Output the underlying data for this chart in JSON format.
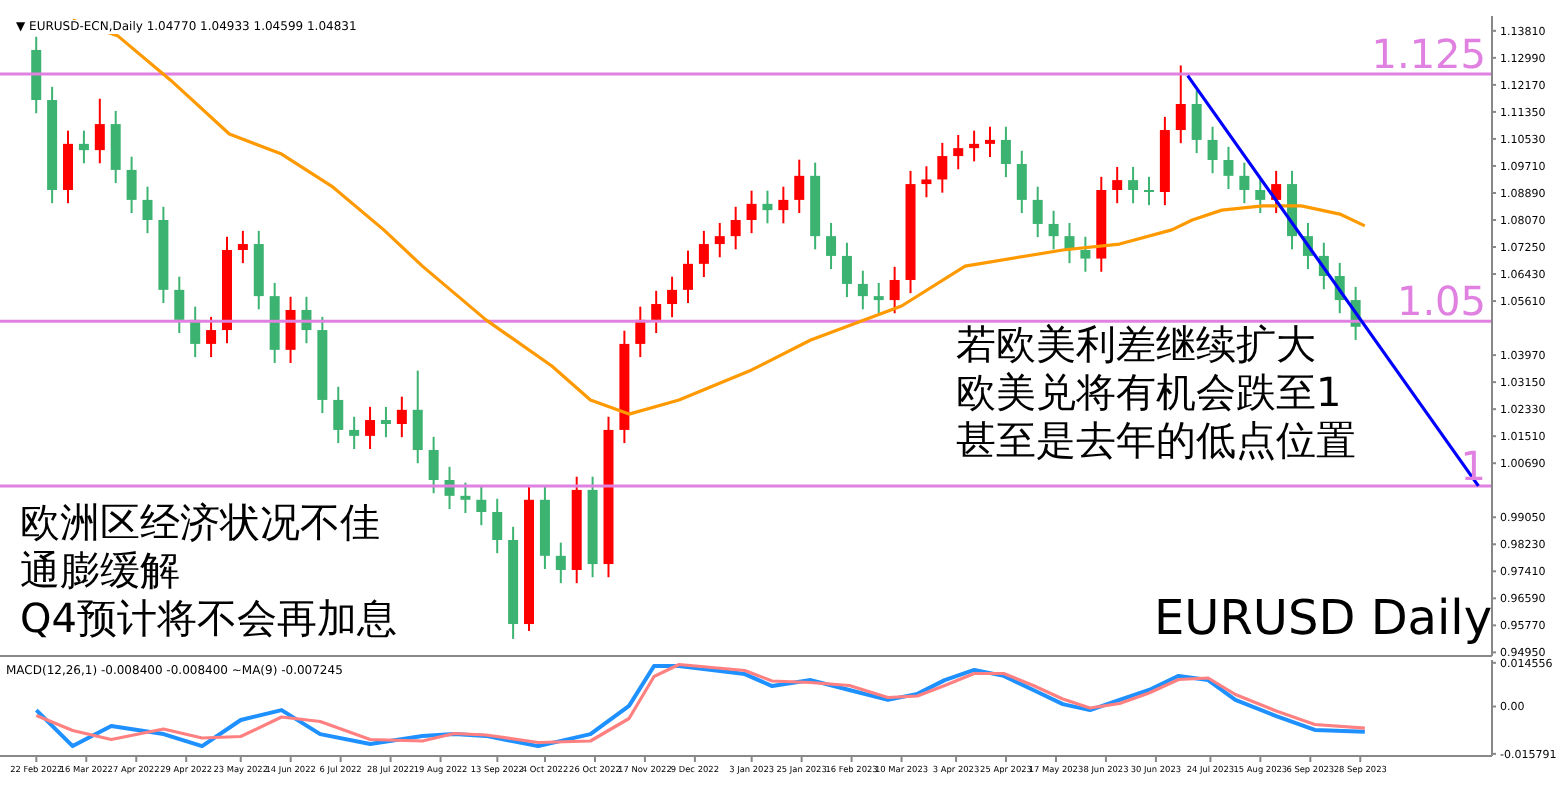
{
  "chart_data": [
    {
      "type": "candlestick",
      "title": "▼ EURUSD-ECN,Daily 1.04770 1.04933 1.04599 1.04831",
      "x": [
        "2022-02-22",
        "2022-03-01",
        "2022-03-08",
        "2022-03-15",
        "2022-03-22",
        "2022-03-29",
        "2022-04-05",
        "2022-04-12",
        "2022-04-19",
        "2022-04-26",
        "2022-05-03",
        "2022-05-10",
        "2022-05-17",
        "2022-05-24",
        "2022-05-31",
        "2022-06-07",
        "2022-06-14",
        "2022-06-21",
        "2022-06-28",
        "2022-07-05",
        "2022-07-12",
        "2022-07-19",
        "2022-07-26",
        "2022-08-02",
        "2022-08-09",
        "2022-08-16",
        "2022-08-23",
        "2022-08-30",
        "2022-09-06",
        "2022-09-13",
        "2022-09-20",
        "2022-09-27",
        "2022-10-04",
        "2022-10-11",
        "2022-10-18",
        "2022-10-25",
        "2022-11-01",
        "2022-11-08",
        "2022-11-15",
        "2022-11-22",
        "2022-11-29",
        "2022-12-06",
        "2022-12-13",
        "2022-12-20",
        "2022-12-27",
        "2023-01-03",
        "2023-01-10",
        "2023-01-17",
        "2023-01-24",
        "2023-01-31",
        "2023-02-07",
        "2023-02-14",
        "2023-02-21",
        "2023-02-28",
        "2023-03-07",
        "2023-03-14",
        "2023-03-21",
        "2023-03-28",
        "2023-04-04",
        "2023-04-11",
        "2023-04-18",
        "2023-04-25",
        "2023-05-02",
        "2023-05-09",
        "2023-05-16",
        "2023-05-23",
        "2023-05-30",
        "2023-06-06",
        "2023-06-13",
        "2023-06-20",
        "2023-06-27",
        "2023-07-04",
        "2023-07-11",
        "2023-07-18",
        "2023-07-25",
        "2023-08-01",
        "2023-08-08",
        "2023-08-15",
        "2023-08-22",
        "2023-08-29",
        "2023-09-05",
        "2023-09-12",
        "2023-09-19",
        "2023-09-26"
      ],
      "ohlc": [
        [
          1.1323,
          1.1363,
          1.1131,
          1.1171
        ],
        [
          1.1171,
          1.1211,
          1.0858,
          1.0898
        ],
        [
          1.0898,
          1.1078,
          1.0858,
          1.1038
        ],
        [
          1.1038,
          1.1078,
          1.0979,
          1.1019
        ],
        [
          1.1019,
          1.1175,
          1.0979,
          1.1098
        ],
        [
          1.1098,
          1.1138,
          1.0919,
          1.0959
        ],
        [
          1.0959,
          1.0999,
          1.0828,
          1.0868
        ],
        [
          1.0868,
          1.0908,
          1.0767,
          1.0807
        ],
        [
          1.0807,
          1.0847,
          1.0555,
          1.0595
        ],
        [
          1.0595,
          1.0635,
          1.0464,
          1.0504
        ],
        [
          1.0504,
          1.0544,
          1.0391,
          1.0431
        ],
        [
          1.0431,
          1.0513,
          1.0391,
          1.0473
        ],
        [
          1.0473,
          1.0756,
          1.0433,
          1.0716
        ],
        [
          1.0716,
          1.0774,
          1.0676,
          1.0734
        ],
        [
          1.0734,
          1.0774,
          1.0536,
          1.0576
        ],
        [
          1.0576,
          1.0616,
          1.0373,
          1.0413
        ],
        [
          1.0413,
          1.0574,
          1.0373,
          1.0534
        ],
        [
          1.0534,
          1.0574,
          1.0433,
          1.0473
        ],
        [
          1.0473,
          1.0513,
          1.0221,
          1.0261
        ],
        [
          1.0261,
          1.0301,
          1.013,
          1.017
        ],
        [
          1.017,
          1.021,
          1.0112,
          1.0152
        ],
        [
          1.0152,
          1.024,
          1.0112,
          1.02
        ],
        [
          1.02,
          1.024,
          1.0148,
          1.0188
        ],
        [
          1.0188,
          1.0271,
          1.0148,
          1.0231
        ],
        [
          1.0231,
          1.035,
          1.0069,
          1.0109
        ],
        [
          1.0109,
          1.0149,
          0.9978,
          1.0018
        ],
        [
          1.0018,
          1.0058,
          0.993,
          0.997
        ],
        [
          0.997,
          1.001,
          0.9918,
          0.9958
        ],
        [
          0.9958,
          0.9998,
          0.9881,
          0.9921
        ],
        [
          0.9921,
          0.9961,
          0.9796,
          0.9836
        ],
        [
          0.9836,
          0.9876,
          0.9536,
          0.9581
        ],
        [
          0.9581,
          1.0,
          0.956,
          0.9958
        ],
        [
          0.9958,
          0.9998,
          0.9748,
          0.9788
        ],
        [
          0.9788,
          0.9828,
          0.9705,
          0.9745
        ],
        [
          0.9745,
          1.0028,
          0.9705,
          0.9988
        ],
        [
          0.9988,
          1.0028,
          0.9723,
          0.9763
        ],
        [
          0.9763,
          1.021,
          0.9723,
          1.017
        ],
        [
          1.017,
          1.0471,
          1.013,
          1.0431
        ],
        [
          1.0431,
          1.0544,
          1.0391,
          1.0504
        ],
        [
          1.0504,
          1.0592,
          1.0464,
          1.0552
        ],
        [
          1.0552,
          1.0635,
          1.0512,
          1.0595
        ],
        [
          1.0595,
          1.0714,
          1.0555,
          1.0674
        ],
        [
          1.0674,
          1.0774,
          1.0634,
          1.0734
        ],
        [
          1.0734,
          1.0798,
          1.0694,
          1.0758
        ],
        [
          1.0758,
          1.0847,
          1.0718,
          1.0807
        ],
        [
          1.0807,
          1.0896,
          1.0767,
          1.0856
        ],
        [
          1.0856,
          1.0896,
          1.0797,
          1.0837
        ],
        [
          1.0837,
          1.0908,
          1.0797,
          1.0868
        ],
        [
          1.0868,
          1.099,
          1.0828,
          1.0941
        ],
        [
          1.0941,
          1.0981,
          1.0718,
          1.0758
        ],
        [
          1.0758,
          1.0798,
          1.0658,
          1.0698
        ],
        [
          1.0698,
          1.0738,
          1.0573,
          1.0613
        ],
        [
          1.0613,
          1.0653,
          1.0536,
          1.0576
        ],
        [
          1.0576,
          1.0616,
          1.0524,
          1.0564
        ],
        [
          1.0564,
          1.0665,
          1.0524,
          1.0625
        ],
        [
          1.0625,
          1.0956,
          1.0585,
          1.0916
        ],
        [
          1.0916,
          1.097,
          1.0876,
          1.093
        ],
        [
          1.093,
          1.1041,
          1.089,
          1.1001
        ],
        [
          1.1001,
          1.1065,
          1.0961,
          1.1025
        ],
        [
          1.1025,
          1.1078,
          1.0985,
          1.1038
        ],
        [
          1.1038,
          1.109,
          1.0998,
          1.105
        ],
        [
          1.105,
          1.109,
          1.0937,
          1.0977
        ],
        [
          1.0977,
          1.1017,
          1.0828,
          1.0868
        ],
        [
          1.0868,
          1.0908,
          1.0755,
          1.0795
        ],
        [
          1.0795,
          1.0835,
          1.0718,
          1.0758
        ],
        [
          1.0758,
          1.0798,
          1.0676,
          1.0716
        ],
        [
          1.0716,
          1.0756,
          1.065,
          1.069
        ],
        [
          1.069,
          1.0938,
          1.065,
          1.0898
        ],
        [
          1.0898,
          1.0968,
          1.0858,
          1.0928
        ],
        [
          1.0928,
          1.0968,
          1.0858,
          1.0898
        ],
        [
          1.0898,
          1.0938,
          1.0852,
          1.0892
        ],
        [
          1.0892,
          1.112,
          1.0852,
          1.108
        ],
        [
          1.108,
          1.1276,
          1.104,
          1.1159
        ],
        [
          1.1159,
          1.1199,
          1.101,
          1.105
        ],
        [
          1.105,
          1.109,
          1.0949,
          1.0989
        ],
        [
          1.0989,
          1.1029,
          1.0901,
          1.0941
        ],
        [
          1.0941,
          1.0981,
          1.0858,
          1.0898
        ],
        [
          1.0898,
          1.0938,
          1.0828,
          1.0868
        ],
        [
          1.0868,
          1.0956,
          1.0828,
          1.0916
        ],
        [
          1.0916,
          1.0956,
          1.0718,
          1.0758
        ],
        [
          1.0758,
          1.0798,
          1.0658,
          1.0698
        ],
        [
          1.0698,
          1.0738,
          1.0597,
          1.0637
        ],
        [
          1.0637,
          1.0677,
          1.0524,
          1.0564
        ],
        [
          1.0564,
          1.0604,
          1.0443,
          1.0483
        ]
      ],
      "colors": [
        "#3cb371",
        "#3cb371",
        "#ff0000",
        "#3cb371",
        "#ff0000",
        "#3cb371",
        "#3cb371",
        "#3cb371",
        "#3cb371",
        "#3cb371",
        "#3cb371",
        "#ff0000",
        "#ff0000",
        "#ff0000",
        "#3cb371",
        "#3cb371",
        "#ff0000",
        "#3cb371",
        "#3cb371",
        "#3cb371",
        "#3cb371",
        "#ff0000",
        "#3cb371",
        "#ff0000",
        "#3cb371",
        "#3cb371",
        "#3cb371",
        "#3cb371",
        "#3cb371",
        "#3cb371",
        "#3cb371",
        "#ff0000",
        "#3cb371",
        "#3cb371",
        "#ff0000",
        "#3cb371",
        "#ff0000",
        "#ff0000",
        "#ff0000",
        "#ff0000",
        "#ff0000",
        "#ff0000",
        "#ff0000",
        "#ff0000",
        "#ff0000",
        "#ff0000",
        "#3cb371",
        "#ff0000",
        "#ff0000",
        "#3cb371",
        "#3cb371",
        "#3cb371",
        "#3cb371",
        "#3cb371",
        "#ff0000",
        "#ff0000",
        "#ff0000",
        "#ff0000",
        "#ff0000",
        "#ff0000",
        "#ff0000",
        "#3cb371",
        "#3cb371",
        "#3cb371",
        "#3cb371",
        "#3cb371",
        "#3cb371",
        "#ff0000",
        "#ff0000",
        "#3cb371",
        "#3cb371",
        "#ff0000",
        "#ff0000",
        "#3cb371",
        "#3cb371",
        "#3cb371",
        "#3cb371",
        "#3cb371",
        "#ff0000",
        "#3cb371",
        "#3cb371",
        "#3cb371",
        "#3cb371",
        "#3cb371"
      ],
      "series": [
        {
          "type": "line",
          "color": "#ff9900",
          "x": [
            "2022-03-10",
            "2022-03-30",
            "2022-04-22",
            "2022-05-18",
            "2022-06-10",
            "2022-07-02",
            "2022-07-25",
            "2022-08-11",
            "2022-09-08",
            "2022-10-07",
            "2022-10-24",
            "2022-11-10",
            "2022-12-02",
            "2023-01-03",
            "2023-01-29",
            "2023-03-10",
            "2023-04-07",
            "2023-05-20",
            "2023-06-14",
            "2023-07-07",
            "2023-07-16",
            "2023-07-29",
            "2023-08-16",
            "2023-09-02",
            "2023-09-19",
            "2023-09-30"
          ],
          "values": [
            1.1414,
            1.1365,
            1.1232,
            1.1068,
            1.1007,
            1.091,
            1.0777,
            1.0667,
            1.0504,
            1.0364,
            1.0261,
            1.0218,
            1.0261,
            1.0352,
            1.0443,
            1.0546,
            1.0667,
            1.0716,
            1.0734,
            1.0777,
            1.0807,
            1.0837,
            1.085,
            1.085,
            1.0825,
            1.0789
          ]
        },
        {
          "type": "line",
          "color": "#0000ff",
          "x": [
            "2023-07-14",
            "2023-11-19"
          ],
          "values": [
            1.1245,
            1.0
          ]
        }
      ],
      "xlim": [
        "2022-02-06",
        "2023-11-25"
      ],
      "ylim": [
        0.9484,
        1.1426
      ],
      "yticks": [
        {
          "value": 1.1381,
          "label": "1.13810"
        },
        {
          "value": 1.1299,
          "label": "1.12990"
        },
        {
          "value": 1.1217,
          "label": "1.12170"
        },
        {
          "value": 1.1135,
          "label": "1.11350"
        },
        {
          "value": 1.1053,
          "label": "1.10530"
        },
        {
          "value": 1.0971,
          "label": "1.09710"
        },
        {
          "value": 1.0889,
          "label": "1.08890"
        },
        {
          "value": 1.0807,
          "label": "1.08070"
        },
        {
          "value": 1.0725,
          "label": "1.07250"
        },
        {
          "value": 1.0643,
          "label": "1.06430"
        },
        {
          "value": 1.0561,
          "label": "1.05610"
        },
        {
          "value": 1.0397,
          "label": "1.03970"
        },
        {
          "value": 1.0315,
          "label": "1.03150"
        },
        {
          "value": 1.0233,
          "label": "1.02330"
        },
        {
          "value": 1.0151,
          "label": "1.01510"
        },
        {
          "value": 1.0069,
          "label": "1.00690"
        },
        {
          "value": 0.9905,
          "label": "0.99050"
        },
        {
          "value": 0.9823,
          "label": "0.98230"
        },
        {
          "value": 0.9741,
          "label": "0.97410"
        },
        {
          "value": 0.9659,
          "label": "0.96590"
        },
        {
          "value": 0.9577,
          "label": "0.95770"
        },
        {
          "value": 0.9495,
          "label": "0.94950"
        }
      ],
      "tick_labels": "y",
      "ref_lines": [
        {
          "axis": "y",
          "value": 1.125,
          "label": "1.125",
          "color": "#e080e0"
        },
        {
          "axis": "y",
          "value": 1.05,
          "label": "1.05",
          "color": "#e080e0"
        },
        {
          "axis": "y",
          "value": 1.0,
          "label": "1",
          "color": "#e080e0"
        }
      ],
      "annotations": [
        "若欧美利差继续扩大",
        "欧美兑将有机会跌至1",
        "甚至是去年的低点位置",
        "欧洲区经济状况不佳",
        "通膨缓解",
        "Q4预计将不会再加息",
        "EURUSD Daily"
      ]
    },
    {
      "type": "line",
      "title": "MACD(12,26,1) -0.008400 -0.008400 ~MA(9) -0.007245",
      "x": [
        "2022-02-22",
        "2022-03-10",
        "2022-03-27",
        "2022-04-19",
        "2022-05-06",
        "2022-05-23",
        "2022-06-10",
        "2022-06-27",
        "2022-07-19",
        "2022-08-11",
        "2022-08-25",
        "2022-09-08",
        "2022-10-01",
        "2022-10-24",
        "2022-11-10",
        "2022-11-21",
        "2022-12-02",
        "2022-12-31",
        "2023-01-12",
        "2023-01-29",
        "2023-02-15",
        "2023-03-04",
        "2023-03-17",
        "2023-03-29",
        "2023-04-11",
        "2023-04-24",
        "2023-05-07",
        "2023-05-20",
        "2023-06-01",
        "2023-06-14",
        "2023-06-27",
        "2023-07-10",
        "2023-07-23",
        "2023-08-04",
        "2023-08-22",
        "2023-09-08",
        "2023-09-30"
      ],
      "series": [
        {
          "color": "#1e90ff",
          "values": [
            -0.0012,
            -0.0132,
            -0.0065,
            -0.0092,
            -0.0132,
            -0.0045,
            -0.0012,
            -0.0092,
            -0.0125,
            -0.0098,
            -0.0092,
            -0.0098,
            -0.0132,
            -0.0092,
            0.0002,
            0.0135,
            0.0135,
            0.0108,
            0.0068,
            0.0088,
            0.0055,
            0.0022,
            0.0042,
            0.0088,
            0.0122,
            0.0102,
            0.0055,
            0.0008,
            -0.0012,
            0.0022,
            0.0055,
            0.0102,
            0.0088,
            0.0022,
            -0.0032,
            -0.0078,
            -0.0084
          ]
        },
        {
          "color": "#ff8080",
          "values": [
            -0.003,
            -0.008,
            -0.011,
            -0.0075,
            -0.0105,
            -0.01,
            -0.0035,
            -0.005,
            -0.011,
            -0.0115,
            -0.009,
            -0.0095,
            -0.012,
            -0.0115,
            -0.004,
            0.01,
            0.014,
            0.012,
            0.0085,
            0.008,
            0.007,
            0.003,
            0.0035,
            0.007,
            0.011,
            0.011,
            0.007,
            0.0025,
            -0.0005,
            0.001,
            0.0045,
            0.009,
            0.0095,
            0.004,
            -0.0015,
            -0.006,
            -0.0072
          ]
        }
      ],
      "xlim": [
        "2022-02-06",
        "2023-11-25"
      ],
      "xticks": [
        {
          "value": "2022-02-22",
          "label": "22 Feb 2022"
        },
        {
          "value": "2022-03-16",
          "label": "16 Mar 2022"
        },
        {
          "value": "2022-04-07",
          "label": "7 Apr 2022"
        },
        {
          "value": "2022-04-29",
          "label": "29 Apr 2022"
        },
        {
          "value": "2022-05-23",
          "label": "23 May 2022"
        },
        {
          "value": "2022-06-14",
          "label": "14 Jun 2022"
        },
        {
          "value": "2022-07-06",
          "label": "6 Jul 2022"
        },
        {
          "value": "2022-07-28",
          "label": "28 Jul 2022"
        },
        {
          "value": "2022-08-19",
          "label": "19 Aug 2022"
        },
        {
          "value": "2022-09-13",
          "label": "13 Sep 2022"
        },
        {
          "value": "2022-10-04",
          "label": "4 Oct 2022"
        },
        {
          "value": "2022-10-26",
          "label": "26 Oct 2022"
        },
        {
          "value": "2022-11-17",
          "label": "17 Nov 2022"
        },
        {
          "value": "2022-12-09",
          "label": "9 Dec 2022"
        },
        {
          "value": "2023-01-03",
          "label": "3 Jan 2023"
        },
        {
          "value": "2023-01-25",
          "label": "25 Jan 2023"
        },
        {
          "value": "2023-02-16",
          "label": "16 Feb 2023"
        },
        {
          "value": "2023-03-10",
          "label": "10 Mar 2023"
        },
        {
          "value": "2023-04-03",
          "label": "3 Apr 2023"
        },
        {
          "value": "2023-04-25",
          "label": "25 Apr 2023"
        },
        {
          "value": "2023-05-17",
          "label": "17 May 2023"
        },
        {
          "value": "2023-06-08",
          "label": "8 Jun 2023"
        },
        {
          "value": "2023-06-30",
          "label": "30 Jun 2023"
        },
        {
          "value": "2023-07-24",
          "label": "24 Jul 2023"
        },
        {
          "value": "2023-08-15",
          "label": "15 Aug 2023"
        },
        {
          "value": "2023-09-06",
          "label": "6 Sep 2023"
        },
        {
          "value": "2023-09-28",
          "label": "28 Sep 2023"
        }
      ],
      "ylim": [
        -0.0165,
        0.0155
      ],
      "yticks": [
        {
          "value": 0.014556,
          "label": "0.014556"
        },
        {
          "value": 0,
          "label": "0.00"
        },
        {
          "value": -0.015791,
          "label": "-0.015791"
        }
      ]
    }
  ]
}
